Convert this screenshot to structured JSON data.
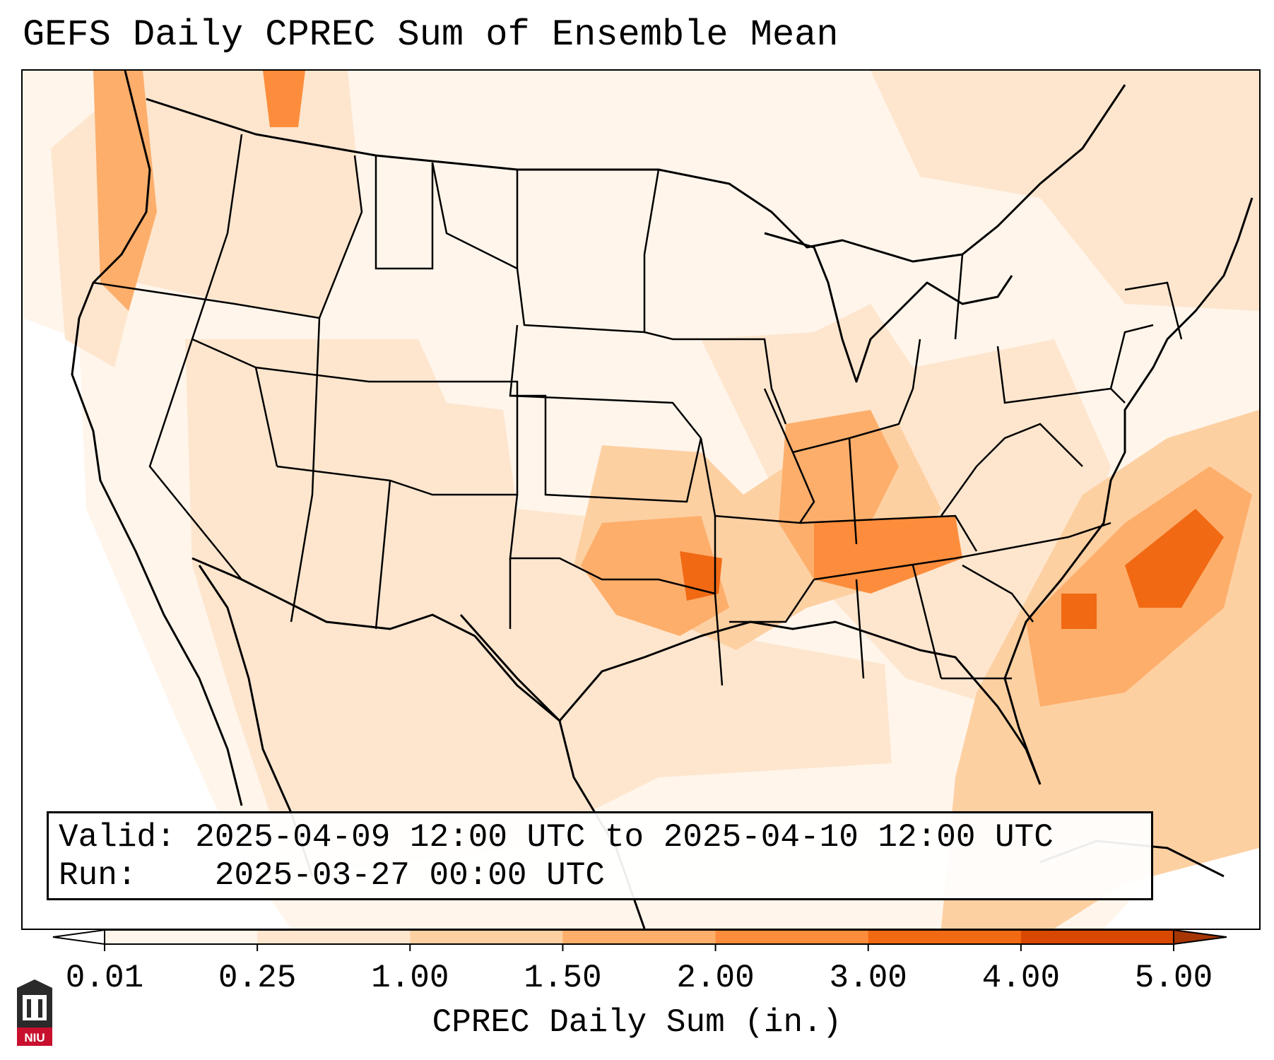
{
  "title": "GEFS Daily CPREC Sum of Ensemble Mean",
  "info": {
    "valid_label": "Valid:",
    "valid_value": "2025-04-09 12:00 UTC to 2025-04-10 12:00 UTC",
    "run_label": "Run:",
    "run_value": "2025-03-27 00:00 UTC"
  },
  "colorbar": {
    "title": "CPREC Daily Sum (in.)",
    "ticks": [
      "0.01",
      "0.25",
      "1.00",
      "1.50",
      "2.00",
      "3.00",
      "4.00",
      "5.00"
    ],
    "colors": [
      "#fff5eb",
      "#fee6ce",
      "#fdd0a2",
      "#fdae6b",
      "#fd8d3c",
      "#f16913",
      "#d94801",
      "#a63603"
    ],
    "under_color": "#ffffff",
    "over_color": "#a63603",
    "extend": "both"
  },
  "map": {
    "region": "Contiguous United States and surrounding areas",
    "boundaries": [
      "coastlines",
      "state borders",
      "national borders"
    ],
    "heavier_regions": [
      "Ozarks / Oklahoma",
      "Ohio Valley / Tennessee",
      "Western Atlantic off Southeast coast",
      "Pacific Northwest coast"
    ]
  },
  "logo": {
    "text": "NIU",
    "color": "#c8102e"
  }
}
